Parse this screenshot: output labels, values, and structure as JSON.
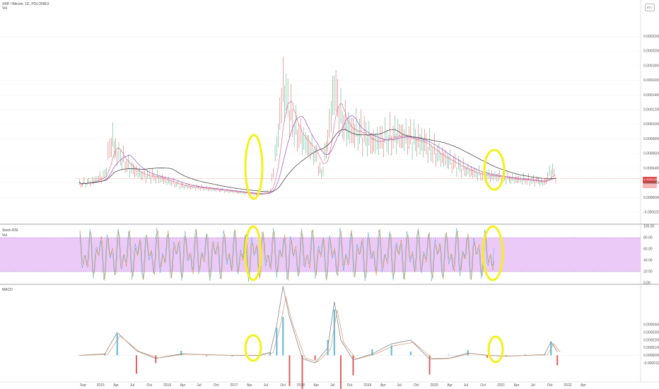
{
  "header": {
    "title": "XRP / Bitcoin, 1D, POLONIEX",
    "subtitle": "Vol",
    "currency_badge": "BTC"
  },
  "panels": {
    "stoch": {
      "label": "Stoch RSI",
      "sublabel": "Vol"
    },
    "macd": {
      "label": "MACD"
    }
  },
  "colors": {
    "candle_up": "#3aa67a",
    "candle_down": "#d05050",
    "ma_fast": "#e0708c",
    "ma_mid": "#9a4fb4",
    "ma_slow": "#333333",
    "stoch_band": "#e5b8f5",
    "stoch_k": "#4aa8d8",
    "stoch_d": "#d09030",
    "highlight": "#f5f01a",
    "price_tag": "#e04848"
  },
  "chart_data": [
    {
      "type": "line",
      "panel": "price",
      "title": "XRP / Bitcoin, 1D, POLONIEX",
      "x": [
        "2014-09",
        "2014-11",
        "2015-01",
        "2015-02",
        "2015-03",
        "2015-05",
        "2015-07",
        "2015-09",
        "2015-11",
        "2016-01",
        "2016-03",
        "2016-05",
        "2016-07",
        "2016-09",
        "2016-11",
        "2017-01",
        "2017-02",
        "2017-03",
        "2017-04",
        "2017-05",
        "2017-06",
        "2017-07",
        "2017-08",
        "2017-09",
        "2017-10",
        "2017-11",
        "2017-12",
        "2018-01",
        "2018-02",
        "2018-03",
        "2018-04",
        "2018-05",
        "2018-07",
        "2018-09",
        "2018-11",
        "2019-01",
        "2019-03",
        "2019-05",
        "2019-07",
        "2019-09",
        "2019-11",
        "2020-01",
        "2020-03",
        "2020-05",
        "2020-07",
        "2020-09",
        "2020-10",
        "2020-11",
        "2020-12"
      ],
      "series": [
        {
          "values": [
            1.8e-05,
            2.2e-05,
            3e-05,
            8e-05,
            6e-05,
            4e-05,
            3e-05,
            2.8e-05,
            2.2e-05,
            1.6e-05,
            1.4e-05,
            1.2e-05,
            1e-05,
            8e-06,
            6e-06,
            4e-06,
            6e-06,
            1e-05,
            7e-05,
            0.00015,
            0.00012,
            9e-05,
            8e-05,
            7e-05,
            6e-05,
            3e-05,
            8e-05,
            0.00015,
            0.00011,
            9.5e-05,
            9e-05,
            9e-05,
            7.5e-05,
            8e-05,
            8.5e-05,
            8e-05,
            7.5e-05,
            6e-05,
            5e-05,
            4e-05,
            3.3e-05,
            3e-05,
            2.8e-05,
            2.5e-05,
            2.4e-05,
            2.2e-05,
            2e-05,
            3.8e-05,
            2.6e-05
          ]
        }
      ],
      "ylim": [
        -2e-05,
        0.00026
      ],
      "y_ticks": [
        "0.00022000",
        "0.00020000",
        "0.00018000",
        "0.00016000",
        "0.00014000",
        "0.00012000",
        "0.00010000",
        "0.00008000",
        "0.00006000",
        "0.00004000",
        "0.00002000",
        "0.00000000",
        "-0.00002000"
      ],
      "price_label": "0.00002400"
    },
    {
      "type": "line",
      "panel": "stoch",
      "title": "Stoch RSI",
      "ylim": [
        0,
        100
      ],
      "band": [
        20,
        80
      ],
      "y_ticks": [
        "100.00",
        "80.00",
        "60.00",
        "40.00",
        "20.00",
        "0.00"
      ]
    },
    {
      "type": "line",
      "panel": "macd",
      "title": "MACD",
      "x": [
        "2014-09",
        "2015-01",
        "2015-03",
        "2015-06",
        "2015-09",
        "2016-01",
        "2016-05",
        "2016-09",
        "2017-01",
        "2017-03",
        "2017-04",
        "2017-05",
        "2017-06",
        "2017-08",
        "2017-10",
        "2017-12",
        "2018-01",
        "2018-02",
        "2018-04",
        "2018-07",
        "2018-10",
        "2019-01",
        "2019-04",
        "2019-07",
        "2019-10",
        "2020-01",
        "2020-04",
        "2020-07",
        "2020-10",
        "2020-11",
        "2020-12"
      ],
      "series": [
        {
          "values": [
            0,
            2e-06,
            3e-05,
            6e-06,
            -4e-06,
            2e-06,
            1e-06,
            0,
            0,
            4e-06,
            4e-05,
            9e-05,
            5e-05,
            -4e-06,
            -1e-05,
            1e-05,
            7e-05,
            2e-05,
            -6e-06,
            2e-06,
            1.5e-05,
            2e-05,
            -5e-06,
            -4e-06,
            3e-06,
            0,
            -1e-06,
            0,
            1e-06,
            1.8e-05,
            5e-06
          ]
        }
      ],
      "ylim": [
        -3e-05,
        9e-05
      ],
      "y_ticks": [
        "0.00004000",
        "0.00003000",
        "0.00002000",
        "0.00001000",
        "0.00000000",
        "-0.00001000"
      ]
    }
  ],
  "x_axis": {
    "labels": [
      "Sep",
      "2015",
      "Apr",
      "Jul",
      "Oct",
      "2016",
      "Apr",
      "Jul",
      "Oct",
      "2017",
      "Apr",
      "Jul",
      "Oct",
      "2018",
      "Apr",
      "Jul",
      "Oct",
      "2019",
      "Apr",
      "Jul",
      "Oct",
      "2020",
      "Apr",
      "Jul",
      "Oct",
      "2021",
      "Apr",
      "Jul",
      "Oct",
      "2022",
      "Apr"
    ]
  }
}
